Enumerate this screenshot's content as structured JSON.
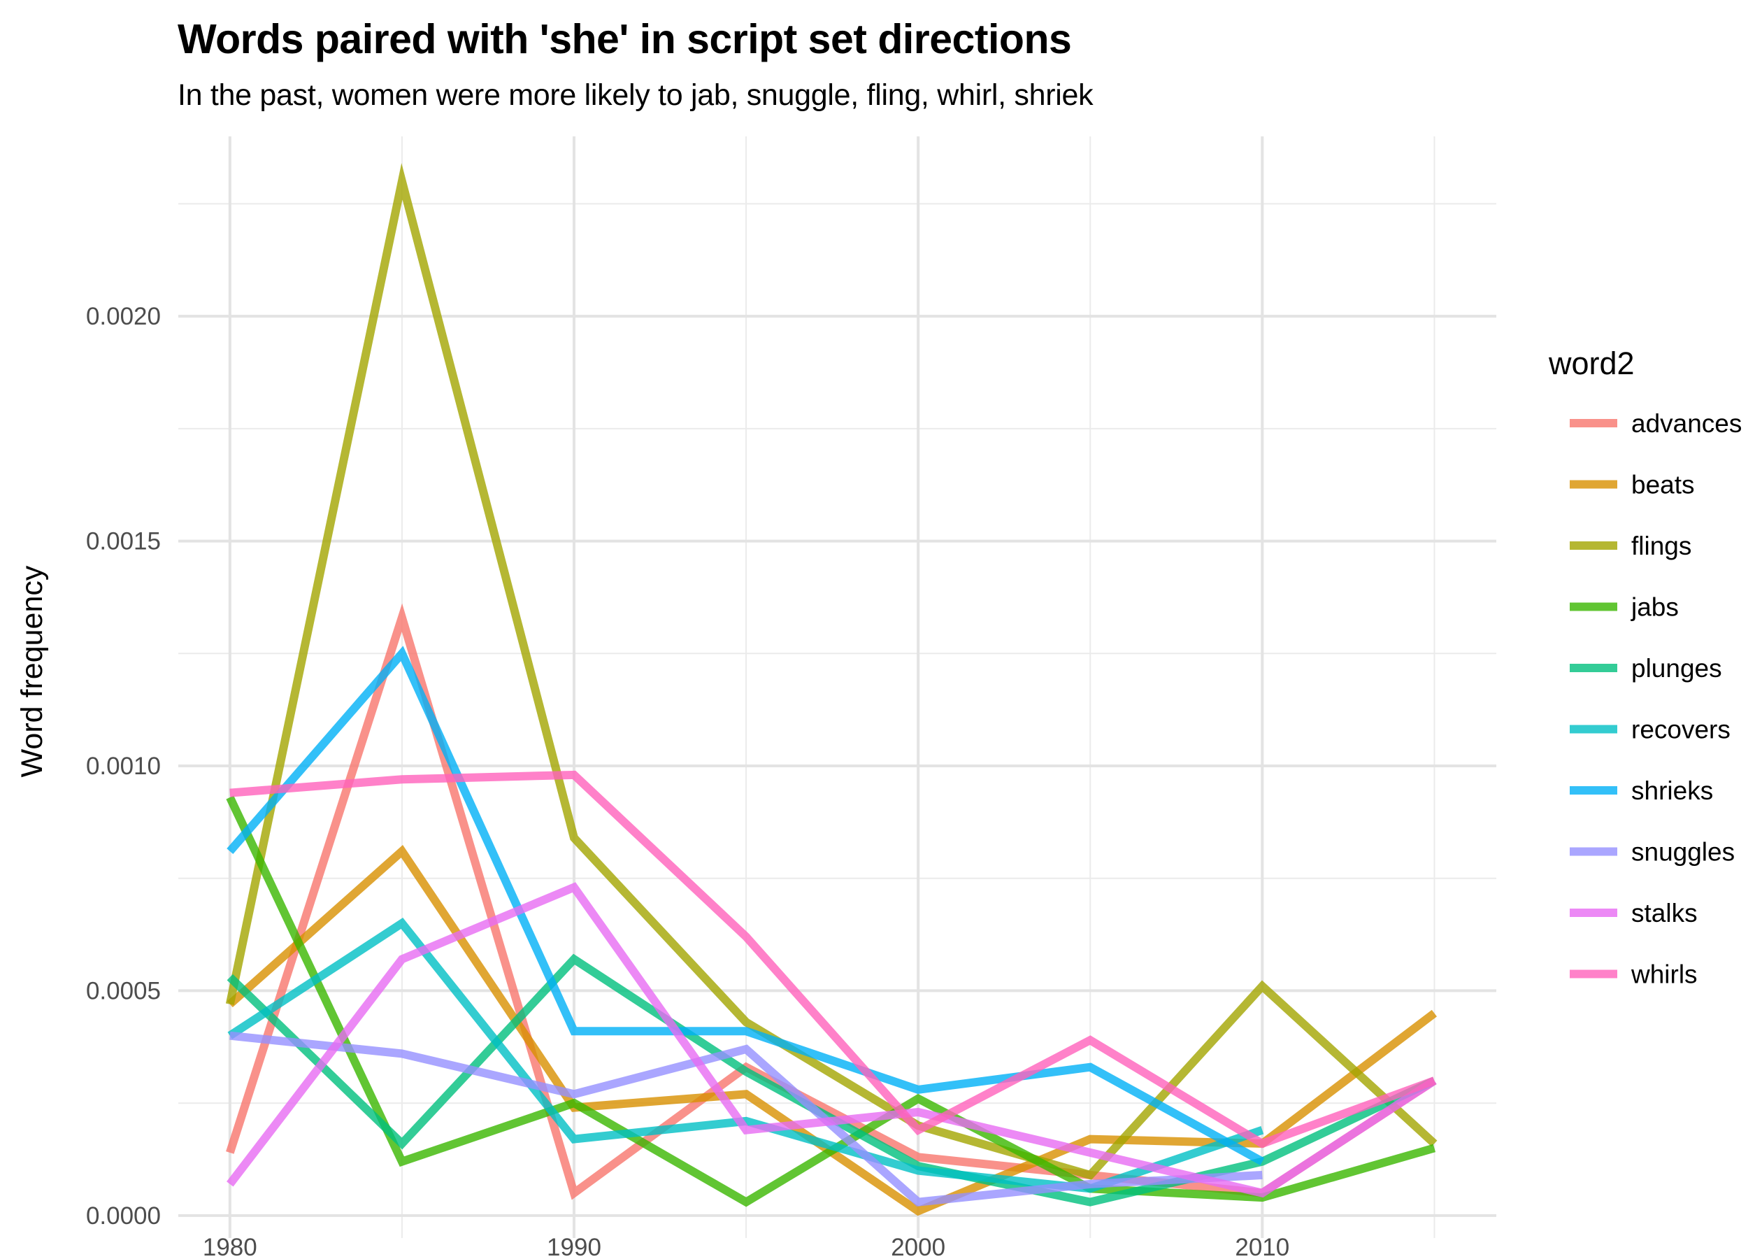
{
  "chart_data": {
    "type": "line",
    "title": "Words paired with 'she' in script set directions",
    "subtitle": "In the past, women were more likely to jab, snuggle, fling, whirl, shriek",
    "xlabel": "",
    "ylabel": "Word frequency",
    "xlim": [
      1978.5,
      2016.8
    ],
    "ylim": [
      -5e-05,
      0.0024
    ],
    "x_ticks": [
      1980,
      1990,
      2000,
      2010
    ],
    "x_tick_labels": [
      "1980",
      "1990",
      "2000",
      "2010"
    ],
    "y_ticks": [
      0,
      0.0005,
      0.001,
      0.0015,
      0.002
    ],
    "y_tick_labels": [
      "0.0000",
      "0.0005",
      "0.0010",
      "0.0015",
      "0.0020"
    ],
    "grid": true,
    "legend": {
      "title": "word2",
      "position": "right"
    },
    "series": [
      {
        "name": "advances",
        "color": "#F8766D",
        "x": [
          1980,
          1985,
          1990,
          1995,
          2000,
          2005,
          2010,
          2015
        ],
        "values": [
          0.00014,
          0.00133,
          5e-05,
          0.00033,
          0.00013,
          9e-05,
          5e-05,
          0.0003
        ]
      },
      {
        "name": "beats",
        "color": "#D89000",
        "x": [
          1980,
          1985,
          1990,
          1995,
          2000,
          2005,
          2010,
          2015
        ],
        "values": [
          0.00047,
          0.00081,
          0.00024,
          0.00027,
          1e-05,
          0.00017,
          0.00016,
          0.00045
        ]
      },
      {
        "name": "flings",
        "color": "#A3A500",
        "x": [
          1980,
          1985,
          1990,
          1995,
          2000,
          2005,
          2010,
          2015
        ],
        "values": [
          0.00047,
          0.0023,
          0.00084,
          0.00043,
          0.0002,
          9e-05,
          0.00051,
          0.00016
        ]
      },
      {
        "name": "jabs",
        "color": "#39B600",
        "x": [
          1980,
          1985,
          1990,
          1995,
          2000,
          2005,
          2010,
          2015
        ],
        "values": [
          0.00093,
          0.00012,
          0.00025,
          3e-05,
          0.00026,
          6e-05,
          4e-05,
          0.00015
        ]
      },
      {
        "name": "plunges",
        "color": "#00BF7D",
        "x": [
          1980,
          1985,
          1990,
          1995,
          2000,
          2005,
          2010,
          2015
        ],
        "values": [
          0.00053,
          0.00016,
          0.00057,
          0.00032,
          0.00011,
          3e-05,
          0.00012,
          0.0003
        ]
      },
      {
        "name": "recovers",
        "color": "#00BFC4",
        "x": [
          1980,
          1985,
          1990,
          1995,
          2000,
          2005,
          2010
        ],
        "values": [
          0.0004,
          0.00065,
          0.00017,
          0.00021,
          0.0001,
          6e-05,
          0.00019
        ]
      },
      {
        "name": "shrieks",
        "color": "#00B0F6",
        "x": [
          1980,
          1985,
          1990,
          1995,
          2000,
          2005,
          2010
        ],
        "values": [
          0.00081,
          0.00125,
          0.00041,
          0.00041,
          0.00028,
          0.00033,
          0.00012
        ]
      },
      {
        "name": "snuggles",
        "color": "#9590FF",
        "x": [
          1980,
          1985,
          1990,
          1995,
          2000,
          2005,
          2010
        ],
        "values": [
          0.0004,
          0.00036,
          0.00027,
          0.00037,
          3e-05,
          7e-05,
          9e-05
        ]
      },
      {
        "name": "stalks",
        "color": "#E76BF3",
        "x": [
          1980,
          1985,
          1990,
          1995,
          2000,
          2005,
          2010,
          2015
        ],
        "values": [
          7e-05,
          0.00057,
          0.00073,
          0.00019,
          0.00023,
          0.00014,
          5e-05,
          0.0003
        ]
      },
      {
        "name": "whirls",
        "color": "#FF62BC",
        "x": [
          1980,
          1985,
          1990,
          1995,
          2000,
          2005,
          2010,
          2015
        ],
        "values": [
          0.00094,
          0.00097,
          0.00098,
          0.00062,
          0.00019,
          0.00039,
          0.00016,
          0.0003
        ]
      }
    ]
  }
}
